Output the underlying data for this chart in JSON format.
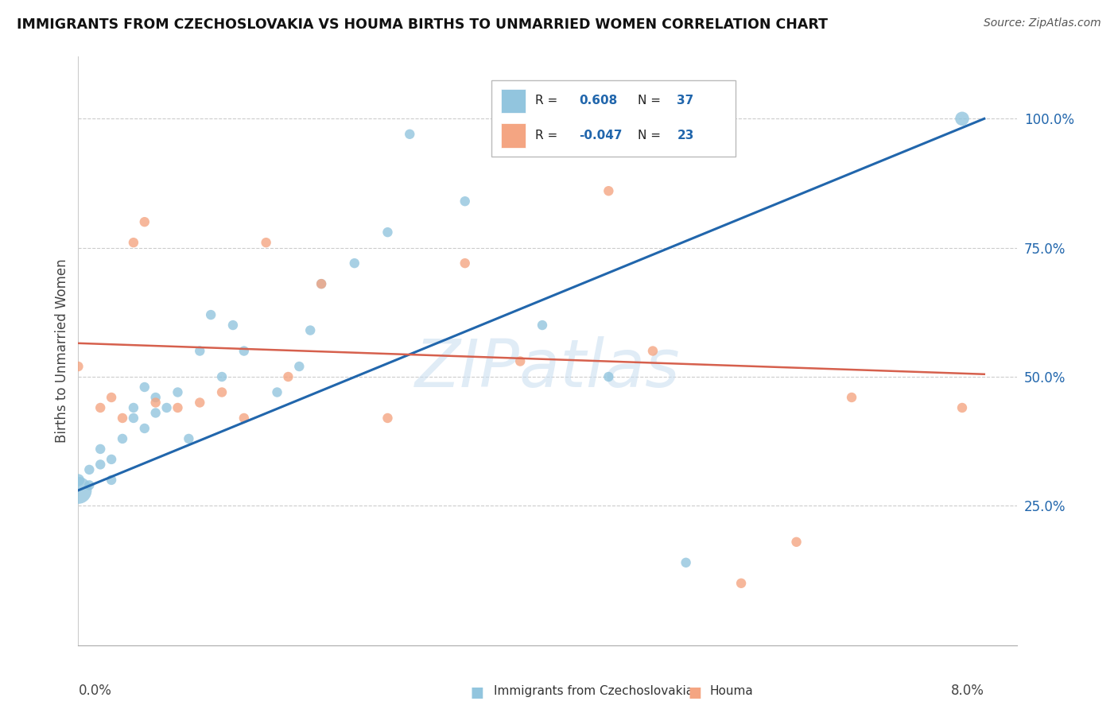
{
  "title": "IMMIGRANTS FROM CZECHOSLOVAKIA VS HOUMA BIRTHS TO UNMARRIED WOMEN CORRELATION CHART",
  "source": "Source: ZipAtlas.com",
  "ylabel": "Births to Unmarried Women",
  "y_ticks_vals": [
    0.25,
    0.5,
    0.75,
    1.0
  ],
  "y_ticks_labels": [
    "25.0%",
    "50.0%",
    "75.0%",
    "100.0%"
  ],
  "legend_label_blue": "Immigrants from Czechoslovakia",
  "legend_label_pink": "Houma",
  "blue_color": "#92c5de",
  "pink_color": "#f4a582",
  "blue_line_color": "#2166ac",
  "pink_line_color": "#d6604d",
  "watermark": "ZIPatlas",
  "blue_line_y0": 0.28,
  "blue_line_y1": 1.0,
  "pink_line_y0": 0.565,
  "pink_line_y1": 0.505,
  "xlim": [
    0.0,
    0.085
  ],
  "ylim": [
    -0.02,
    1.12
  ],
  "blue_x": [
    0.0,
    0.0,
    0.001,
    0.001,
    0.002,
    0.002,
    0.003,
    0.003,
    0.004,
    0.005,
    0.005,
    0.006,
    0.006,
    0.007,
    0.007,
    0.008,
    0.009,
    0.01,
    0.011,
    0.012,
    0.013,
    0.014,
    0.015,
    0.018,
    0.02,
    0.021,
    0.022,
    0.025,
    0.028,
    0.03,
    0.035,
    0.038,
    0.04,
    0.042,
    0.048,
    0.055,
    0.08
  ],
  "blue_y": [
    0.28,
    0.3,
    0.29,
    0.32,
    0.33,
    0.36,
    0.3,
    0.34,
    0.38,
    0.42,
    0.44,
    0.4,
    0.48,
    0.43,
    0.46,
    0.44,
    0.47,
    0.38,
    0.55,
    0.62,
    0.5,
    0.6,
    0.55,
    0.47,
    0.52,
    0.59,
    0.68,
    0.72,
    0.78,
    0.97,
    0.84,
    0.98,
    0.97,
    0.6,
    0.5,
    0.14,
    1.0
  ],
  "blue_sizes": [
    600,
    120,
    80,
    80,
    80,
    80,
    80,
    80,
    80,
    80,
    80,
    80,
    80,
    80,
    80,
    80,
    80,
    80,
    80,
    80,
    80,
    80,
    80,
    80,
    80,
    80,
    80,
    80,
    80,
    80,
    80,
    80,
    80,
    80,
    80,
    80,
    160
  ],
  "pink_x": [
    0.0,
    0.002,
    0.003,
    0.004,
    0.005,
    0.006,
    0.007,
    0.009,
    0.011,
    0.013,
    0.015,
    0.017,
    0.019,
    0.022,
    0.028,
    0.035,
    0.04,
    0.048,
    0.052,
    0.06,
    0.065,
    0.07,
    0.08
  ],
  "pink_y": [
    0.52,
    0.44,
    0.46,
    0.42,
    0.76,
    0.8,
    0.45,
    0.44,
    0.45,
    0.47,
    0.42,
    0.76,
    0.5,
    0.68,
    0.42,
    0.72,
    0.53,
    0.86,
    0.55,
    0.1,
    0.18,
    0.46,
    0.44
  ],
  "pink_sizes": [
    80,
    80,
    80,
    80,
    80,
    80,
    80,
    80,
    80,
    80,
    80,
    80,
    80,
    80,
    80,
    80,
    80,
    80,
    80,
    80,
    80,
    80,
    80
  ]
}
